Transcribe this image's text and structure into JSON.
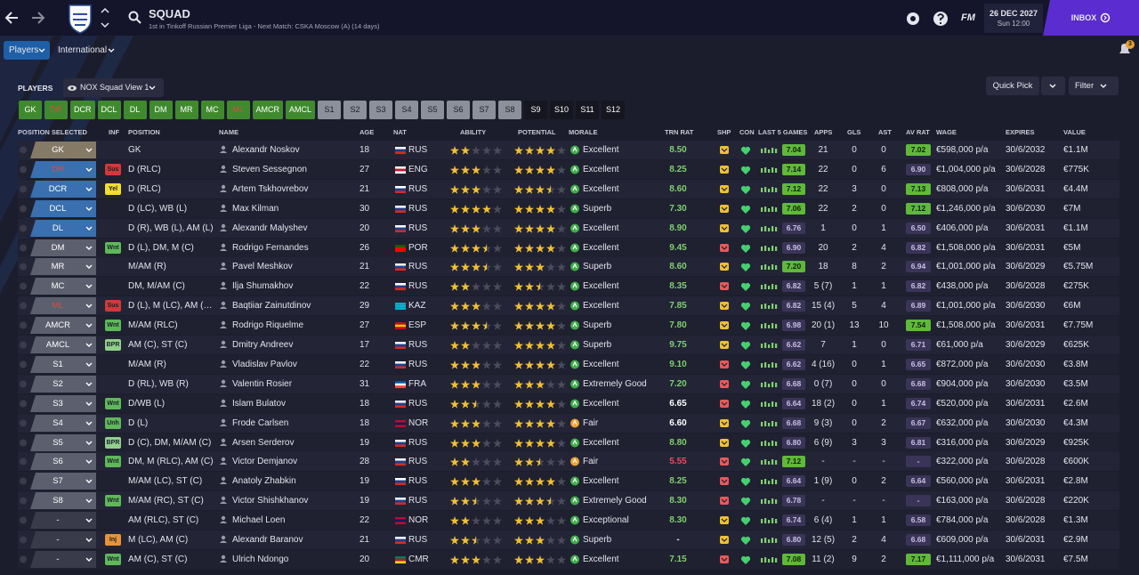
{
  "header": {
    "title": "SQUAD",
    "subtitle": "1st in Tinkoff Russian Premier Liga - Next Match: CSKA Moscow (A) (14 days)",
    "fm": "FM",
    "date": "26 DEC 2027",
    "time": "Sun 12:00",
    "inbox": "INBOX",
    "notifications": "3"
  },
  "tabs": [
    "Players",
    "International"
  ],
  "players": {
    "label": "PLAYERS",
    "view": "NOX Squad View 1",
    "quick_pick": "Quick Pick",
    "filter": "Filter"
  },
  "position_buttons": [
    {
      "label": "GK",
      "bg": "#3f8a2e",
      "fg": "#ffffff"
    },
    {
      "label": "DR",
      "bg": "#3f8a2e",
      "fg": "#e04848"
    },
    {
      "label": "DCR",
      "bg": "#3f8a2e",
      "fg": "#ffffff"
    },
    {
      "label": "DCL",
      "bg": "#3f8a2e",
      "fg": "#ffffff"
    },
    {
      "label": "DL",
      "bg": "#3f8a2e",
      "fg": "#ffffff"
    },
    {
      "label": "DM",
      "bg": "#3f8a2e",
      "fg": "#ffffff"
    },
    {
      "label": "MR",
      "bg": "#3f8a2e",
      "fg": "#ffffff"
    },
    {
      "label": "MC",
      "bg": "#3f8a2e",
      "fg": "#ffffff"
    },
    {
      "label": "ML",
      "bg": "#3f8a2e",
      "fg": "#e04848"
    },
    {
      "label": "AMCR",
      "bg": "#3f8a2e",
      "fg": "#ffffff"
    },
    {
      "label": "AMCL",
      "bg": "#3f8a2e",
      "fg": "#ffffff"
    },
    {
      "label": "S1",
      "bg": "#8c909a",
      "fg": "#1b1c28"
    },
    {
      "label": "S2",
      "bg": "#8c909a",
      "fg": "#1b1c28"
    },
    {
      "label": "S3",
      "bg": "#8c909a",
      "fg": "#1b1c28"
    },
    {
      "label": "S4",
      "bg": "#8c909a",
      "fg": "#1b1c28"
    },
    {
      "label": "S5",
      "bg": "#8c909a",
      "fg": "#1b1c28"
    },
    {
      "label": "S6",
      "bg": "#8c909a",
      "fg": "#1b1c28"
    },
    {
      "label": "S7",
      "bg": "#8c909a",
      "fg": "#1b1c28"
    },
    {
      "label": "S8",
      "bg": "#8c909a",
      "fg": "#1b1c28"
    },
    {
      "label": "S9",
      "bg": "#15161f",
      "fg": "#ffffff"
    },
    {
      "label": "S10",
      "bg": "#15161f",
      "fg": "#ffffff"
    },
    {
      "label": "S11",
      "bg": "#15161f",
      "fg": "#ffffff"
    },
    {
      "label": "S12",
      "bg": "#15161f",
      "fg": "#ffffff"
    }
  ],
  "columns": {
    "sel": "POSITION SELECTED",
    "inf": "INF",
    "pos": "POSITION",
    "name": "NAME",
    "age": "AGE",
    "nat": "NAT",
    "ability": "ABILITY",
    "potential": "POTENTIAL",
    "morale": "MORALE",
    "trn": "TRN RAT",
    "shp": "SHP",
    "con": "CON",
    "form": "LAST 5 GAMES",
    "apps": "APPS",
    "gls": "GLS",
    "ast": "AST",
    "avrat": "AV RAT",
    "wage": "WAGE",
    "expires": "EXPIRES",
    "value": "VALUE"
  },
  "rows": [
    {
      "sel": "GK",
      "sel_color": "#857a66",
      "sel_fg": "#ffffff",
      "pos": "GK",
      "name": "Alexandr Noskov",
      "age": 18,
      "nat": "RUS",
      "flag": [
        "#ffffff",
        "#1c3f94",
        "#d52b1e"
      ],
      "ability": 2,
      "potential": 4,
      "morale": "Excellent",
      "morale_color": "#3fae49",
      "trn": "8.50",
      "shp": "#f0c030",
      "form": "7.04",
      "apps": "21",
      "gls": "0",
      "ast": "0",
      "avrat": "7.02",
      "wage": "€598,000 p/a",
      "expires": "30/6/2032",
      "value": "€1.1M"
    },
    {
      "sel": "DR",
      "sel_color": "#3a6fb0",
      "sel_fg": "#e04848",
      "inf": "Sus",
      "inf_color": "#d03a3a",
      "pos": "D (RLC)",
      "name": "Steven Sessegnon",
      "age": 27,
      "nat": "ENG",
      "flag": [
        "#ffffff",
        "#cf142b",
        "#ffffff"
      ],
      "ability": 3,
      "potential": 4,
      "morale": "Excellent",
      "morale_color": "#3fae49",
      "trn": "8.25",
      "shp": "#f0c030",
      "form": "7.14",
      "apps": "22",
      "gls": "0",
      "ast": "6",
      "avrat": "6.90",
      "wage": "€1,004,000 p/a",
      "expires": "30/6/2028",
      "value": "€775K"
    },
    {
      "sel": "DCR",
      "sel_color": "#3a6fb0",
      "sel_fg": "#ffffff",
      "inf": "Yel",
      "inf_color": "#f2e030",
      "pos": "D (RLC)",
      "name": "Artem Tskhovrebov",
      "age": 21,
      "nat": "RUS",
      "flag": [
        "#ffffff",
        "#1c3f94",
        "#d52b1e"
      ],
      "ability": 3,
      "potential": 3.5,
      "morale": "Excellent",
      "morale_color": "#3fae49",
      "trn": "8.60",
      "shp": "#f0c030",
      "form": "7.12",
      "apps": "22",
      "gls": "3",
      "ast": "0",
      "avrat": "7.13",
      "wage": "€808,000 p/a",
      "expires": "30/6/2031",
      "value": "€4.4M"
    },
    {
      "sel": "DCL",
      "sel_color": "#3a6fb0",
      "sel_fg": "#ffffff",
      "pos": "D (LC), WB (L)",
      "name": "Max Kilman",
      "age": 30,
      "nat": "RUS",
      "flag": [
        "#ffffff",
        "#1c3f94",
        "#d52b1e"
      ],
      "ability": 4,
      "potential": 4,
      "morale": "Superb",
      "morale_color": "#3fae49",
      "trn": "7.30",
      "shp": "#f0c030",
      "form": "7.06",
      "apps": "22",
      "gls": "2",
      "ast": "0",
      "avrat": "7.12",
      "wage": "€1,246,000 p/a",
      "expires": "30/6/2030",
      "value": "€7M"
    },
    {
      "sel": "DL",
      "sel_color": "#3a6fb0",
      "sel_fg": "#ffffff",
      "pos": "D (R), WB (L), AM (L)",
      "name": "Alexandr Malyshev",
      "age": 20,
      "nat": "RUS",
      "flag": [
        "#ffffff",
        "#1c3f94",
        "#d52b1e"
      ],
      "ability": 3,
      "potential": 4,
      "morale": "Excellent",
      "morale_color": "#3fae49",
      "trn": "8.90",
      "shp": "#f0c030",
      "form": "6.76",
      "apps": "1",
      "gls": "0",
      "ast": "1",
      "avrat": "6.50",
      "wage": "€406,000 p/a",
      "expires": "30/6/2031",
      "value": "€1.1M"
    },
    {
      "sel": "DM",
      "sel_color": "#5c5f6e",
      "sel_fg": "#ffffff",
      "inf": "Wnt",
      "inf_color": "#5fb85a",
      "pos": "D (L), DM, M (C)",
      "name": "Rodrigo Fernandes",
      "age": 26,
      "nat": "POR",
      "flag": [
        "#006600",
        "#ff0000",
        "#ff0000"
      ],
      "ability": 3.5,
      "potential": 4,
      "morale": "Excellent",
      "morale_color": "#3fae49",
      "trn": "9.45",
      "shp": "#e85a5a",
      "form": "6.90",
      "apps": "20",
      "gls": "2",
      "ast": "4",
      "avrat": "6.82",
      "wage": "€1,508,000 p/a",
      "expires": "30/6/2031",
      "value": "€5M"
    },
    {
      "sel": "MR",
      "sel_color": "#5c5f6e",
      "sel_fg": "#ffffff",
      "pos": "M/AM (R)",
      "name": "Pavel Meshkov",
      "age": 21,
      "nat": "RUS",
      "flag": [
        "#ffffff",
        "#1c3f94",
        "#d52b1e"
      ],
      "ability": 3.5,
      "potential": 3,
      "morale": "Superb",
      "morale_color": "#3fae49",
      "trn": "8.60",
      "shp": "#f0c030",
      "form": "7.20",
      "apps": "18",
      "gls": "8",
      "ast": "2",
      "avrat": "6.94",
      "wage": "€1,001,000 p/a",
      "expires": "30/6/2029",
      "value": "€5.75M"
    },
    {
      "sel": "MC",
      "sel_color": "#5c5f6e",
      "sel_fg": "#ffffff",
      "pos": "DM, M/AM (C)",
      "name": "Ilja Shumakhov",
      "age": 22,
      "nat": "RUS",
      "flag": [
        "#ffffff",
        "#1c3f94",
        "#d52b1e"
      ],
      "ability": 2,
      "potential": 2.5,
      "morale": "Excellent",
      "morale_color": "#3fae49",
      "trn": "8.35",
      "shp": "#e85a5a",
      "form": "6.82",
      "apps": "5 (7)",
      "gls": "1",
      "ast": "1",
      "avrat": "6.82",
      "wage": "€438,000 p/a",
      "expires": "30/6/2028",
      "value": "€275K"
    },
    {
      "sel": "ML",
      "sel_color": "#5c5f6e",
      "sel_fg": "#e04848",
      "inf": "Sus",
      "inf_color": "#d03a3a",
      "pos": "D (L), M (LC), AM (RLC)",
      "name": "Baqtiiar Zainutdinov",
      "age": 29,
      "nat": "KAZ",
      "flag": [
        "#00afca",
        "#00afca",
        "#00afca"
      ],
      "ability": 3,
      "potential": 4,
      "morale": "Excellent",
      "morale_color": "#3fae49",
      "trn": "7.85",
      "shp": "#f0c030",
      "form": "6.82",
      "apps": "15 (4)",
      "gls": "5",
      "ast": "4",
      "avrat": "6.89",
      "wage": "€1,001,000 p/a",
      "expires": "30/6/2030",
      "value": "€6M"
    },
    {
      "sel": "AMCR",
      "sel_color": "#5c5f6e",
      "sel_fg": "#ffffff",
      "inf": "Wnt",
      "inf_color": "#5fb85a",
      "pos": "M/AM (RLC)",
      "name": "Rodrigo Riquelme",
      "age": 27,
      "nat": "ESP",
      "flag": [
        "#c60b1e",
        "#ffc400",
        "#c60b1e"
      ],
      "ability": 3.5,
      "potential": 4,
      "morale": "Superb",
      "morale_color": "#3fae49",
      "trn": "7.80",
      "shp": "#f0c030",
      "form": "6.98",
      "apps": "20 (1)",
      "gls": "13",
      "ast": "10",
      "avrat": "7.54",
      "wage": "€1,508,000 p/a",
      "expires": "30/6/2031",
      "value": "€7.75M"
    },
    {
      "sel": "AMCL",
      "sel_color": "#5c5f6e",
      "sel_fg": "#ffffff",
      "inf": "BPR",
      "inf_color": "#8fd08a",
      "pos": "AM (C), ST (C)",
      "name": "Dmitry Andreev",
      "age": 17,
      "nat": "RUS",
      "flag": [
        "#ffffff",
        "#1c3f94",
        "#d52b1e"
      ],
      "ability": 2,
      "potential": 4,
      "morale": "Superb",
      "morale_color": "#3fae49",
      "trn": "9.75",
      "shp": "#f0c030",
      "form": "6.62",
      "apps": "7",
      "gls": "1",
      "ast": "0",
      "avrat": "6.71",
      "wage": "€61,000 p/a",
      "expires": "30/6/2029",
      "value": "€625K"
    },
    {
      "sel": "S1",
      "sel_color": "#5c5f6e",
      "sel_fg": "#ffffff",
      "pos": "M/AM (R)",
      "name": "Vladislav Pavlov",
      "age": 22,
      "nat": "RUS",
      "flag": [
        "#ffffff",
        "#1c3f94",
        "#d52b1e"
      ],
      "ability": 3,
      "potential": 4,
      "morale": "Excellent",
      "morale_color": "#3fae49",
      "trn": "9.10",
      "shp": "#e85a5a",
      "form": "6.62",
      "apps": "4 (16)",
      "gls": "0",
      "ast": "1",
      "avrat": "6.65",
      "wage": "€872,000 p/a",
      "expires": "30/6/2030",
      "value": "€3.8M"
    },
    {
      "sel": "S2",
      "sel_color": "#5c5f6e",
      "sel_fg": "#ffffff",
      "pos": "D (RL), WB (R)",
      "name": "Valentin Rosier",
      "age": 31,
      "nat": "FRA",
      "flag": [
        "#0055a4",
        "#ffffff",
        "#ef4135"
      ],
      "ability": 3,
      "potential": 3,
      "morale": "Extremely Good",
      "morale_color": "#3fae49",
      "trn": "7.20",
      "shp": "#e85a5a",
      "form": "6.68",
      "apps": "0 (7)",
      "gls": "0",
      "ast": "0",
      "avrat": "6.68",
      "wage": "€904,000 p/a",
      "expires": "30/6/2030",
      "value": "€3.5M"
    },
    {
      "sel": "S3",
      "sel_color": "#5c5f6e",
      "sel_fg": "#ffffff",
      "inf": "Wnt",
      "inf_color": "#5fb85a",
      "pos": "D/WB (L)",
      "name": "Islam Bulatov",
      "age": 18,
      "nat": "RUS",
      "flag": [
        "#ffffff",
        "#1c3f94",
        "#d52b1e"
      ],
      "ability": 2.5,
      "potential": 4,
      "morale": "Excellent",
      "morale_color": "#3fae49",
      "trn": "6.65",
      "shp": "#e85a5a",
      "form": "6.64",
      "apps": "18 (2)",
      "gls": "0",
      "ast": "1",
      "avrat": "6.74",
      "wage": "€520,000 p/a",
      "expires": "30/6/2031",
      "value": "€2.6M"
    },
    {
      "sel": "S4",
      "sel_color": "#5c5f6e",
      "sel_fg": "#ffffff",
      "inf": "Unh",
      "inf_color": "#5fb85a",
      "pos": "D (L)",
      "name": "Frode Carlsen",
      "age": 18,
      "nat": "NOR",
      "flag": [
        "#ba0c2f",
        "#00205b",
        "#ba0c2f"
      ],
      "ability": 3,
      "potential": 4,
      "morale": "Fair",
      "morale_color": "#f0a030",
      "trn": "6.60",
      "shp": "#f0c030",
      "form": "6.68",
      "apps": "9 (3)",
      "gls": "0",
      "ast": "2",
      "avrat": "6.67",
      "wage": "€632,000 p/a",
      "expires": "30/6/2030",
      "value": "€4.3M"
    },
    {
      "sel": "S5",
      "sel_color": "#5c5f6e",
      "sel_fg": "#ffffff",
      "inf": "BPR",
      "inf_color": "#8fd08a",
      "pos": "D (C), DM, M/AM (C)",
      "name": "Arsen Serderov",
      "age": 19,
      "nat": "RUS",
      "flag": [
        "#ffffff",
        "#1c3f94",
        "#d52b1e"
      ],
      "ability": 3,
      "potential": 4,
      "morale": "Excellent",
      "morale_color": "#3fae49",
      "trn": "8.80",
      "shp": "#f0c030",
      "form": "6.80",
      "apps": "6 (9)",
      "gls": "3",
      "ast": "3",
      "avrat": "6.81",
      "wage": "€316,000 p/a",
      "expires": "30/6/2029",
      "value": "€925K"
    },
    {
      "sel": "S6",
      "sel_color": "#5c5f6e",
      "sel_fg": "#ffffff",
      "inf": "Wnt",
      "inf_color": "#5fb85a",
      "pos": "DM, M (RLC), AM (C)",
      "name": "Victor Demjanov",
      "age": 28,
      "nat": "RUS",
      "flag": [
        "#ffffff",
        "#1c3f94",
        "#d52b1e"
      ],
      "ability": 2,
      "potential": 2.5,
      "morale": "Fair",
      "morale_color": "#f0a030",
      "trn": "5.55",
      "shp": "#e85a5a",
      "form": "7.12",
      "apps": "-",
      "gls": "-",
      "ast": "-",
      "avrat": "-",
      "wage": "€322,000 p/a",
      "expires": "30/6/2028",
      "value": "€600K"
    },
    {
      "sel": "S7",
      "sel_color": "#5c5f6e",
      "sel_fg": "#ffffff",
      "pos": "M/AM (LC), ST (C)",
      "name": "Anatoly Zhabkin",
      "age": 19,
      "nat": "RUS",
      "flag": [
        "#ffffff",
        "#1c3f94",
        "#d52b1e"
      ],
      "ability": 3,
      "potential": 4,
      "morale": "Excellent",
      "morale_color": "#3fae49",
      "trn": "8.25",
      "shp": "#e85a5a",
      "form": "6.64",
      "apps": "1 (9)",
      "gls": "0",
      "ast": "2",
      "avrat": "6.64",
      "wage": "€560,000 p/a",
      "expires": "30/6/2031",
      "value": "€2.8M"
    },
    {
      "sel": "S8",
      "sel_color": "#5c5f6e",
      "sel_fg": "#ffffff",
      "inf": "Wnt",
      "inf_color": "#5fb85a",
      "pos": "M/AM (RC), ST (C)",
      "name": "Victor Shishkhanov",
      "age": 19,
      "nat": "RUS",
      "flag": [
        "#ffffff",
        "#1c3f94",
        "#d52b1e"
      ],
      "ability": 2.5,
      "potential": 3.5,
      "morale": "Extremely Good",
      "morale_color": "#3fae49",
      "trn": "8.30",
      "shp": "#e85a5a",
      "form": "6.78",
      "apps": "-",
      "gls": "-",
      "ast": "-",
      "avrat": "-",
      "wage": "€163,000 p/a",
      "expires": "30/6/2028",
      "value": "€220K"
    },
    {
      "sel": "-",
      "sel_color": "#3a3b4a",
      "sel_fg": "#ffffff",
      "pos": "AM (RLC), ST (C)",
      "name": "Michael Loen",
      "age": 22,
      "nat": "NOR",
      "flag": [
        "#ba0c2f",
        "#00205b",
        "#ba0c2f"
      ],
      "ability": 2,
      "potential": 3,
      "morale": "Exceptional",
      "morale_color": "#3fae49",
      "trn": "8.30",
      "shp": "#f0c030",
      "form": "6.74",
      "apps": "6 (4)",
      "gls": "1",
      "ast": "1",
      "avrat": "6.58",
      "wage": "€784,000 p/a",
      "expires": "30/6/2028",
      "value": "€1.3M"
    },
    {
      "sel": "-",
      "sel_color": "#3a3b4a",
      "sel_fg": "#ffffff",
      "inf": "Inj",
      "inf_color": "#e8943a",
      "pos": "M (LC), AM (C)",
      "name": "Alexandr Baranov",
      "age": 21,
      "nat": "RUS",
      "flag": [
        "#ffffff",
        "#1c3f94",
        "#d52b1e"
      ],
      "ability": 2.5,
      "potential": 3,
      "morale": "Superb",
      "morale_color": "#3fae49",
      "trn": "-",
      "shp": "#f0c030",
      "form": "6.80",
      "apps": "12 (5)",
      "gls": "2",
      "ast": "4",
      "avrat": "6.68",
      "wage": "€609,000 p/a",
      "expires": "30/6/2031",
      "value": "€2.9M"
    },
    {
      "sel": "-",
      "sel_color": "#3a3b4a",
      "sel_fg": "#ffffff",
      "inf": "Wnt",
      "inf_color": "#5fb85a",
      "pos": "AM (C), ST (C)",
      "name": "Ulrich Ndongo",
      "age": 20,
      "nat": "CMR",
      "flag": [
        "#007a5e",
        "#ce1126",
        "#fcd116"
      ],
      "ability": 3,
      "potential": 3,
      "morale": "Excellent",
      "morale_color": "#3fae49",
      "trn": "7.15",
      "shp": "#e85a5a",
      "form": "7.08",
      "apps": "11 (2)",
      "gls": "9",
      "ast": "2",
      "avrat": "7.17",
      "wage": "€1,111,000 p/a",
      "expires": "30/6/2031",
      "value": "€7.5M"
    }
  ]
}
